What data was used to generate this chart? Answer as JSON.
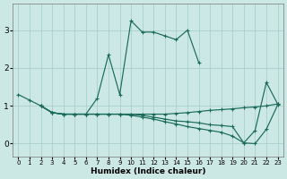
{
  "xlabel": "Humidex (Indice chaleur)",
  "xlim": [
    -0.5,
    23.5
  ],
  "ylim": [
    -0.35,
    3.7
  ],
  "yticks": [
    0,
    1,
    2,
    3
  ],
  "xticks": [
    0,
    1,
    2,
    3,
    4,
    5,
    6,
    7,
    8,
    9,
    10,
    11,
    12,
    13,
    14,
    15,
    16,
    17,
    18,
    19,
    20,
    21,
    22,
    23
  ],
  "background_color": "#cce8e5",
  "grid_color": "#aacfcc",
  "line_color": "#1a6b5a",
  "lines": [
    {
      "x": [
        0,
        1,
        2,
        3,
        4,
        5,
        6,
        7,
        8,
        9,
        10,
        11,
        12,
        13,
        14,
        15,
        16
      ],
      "y": [
        1.3,
        1.15,
        1.0,
        0.82,
        0.78,
        0.78,
        0.78,
        1.2,
        2.35,
        1.3,
        3.25,
        2.95,
        2.95,
        2.85,
        2.75,
        3.0,
        2.15
      ]
    },
    {
      "x": [
        2,
        3,
        4,
        5,
        6,
        7,
        8,
        9,
        10,
        11,
        12,
        13,
        14,
        15,
        16,
        17,
        18,
        19,
        20,
        21,
        22,
        23
      ],
      "y": [
        1.0,
        0.82,
        0.78,
        0.78,
        0.78,
        0.78,
        0.78,
        0.78,
        0.78,
        0.78,
        0.78,
        0.78,
        0.8,
        0.82,
        0.85,
        0.88,
        0.9,
        0.92,
        0.95,
        0.97,
        1.0,
        1.05
      ]
    },
    {
      "x": [
        2,
        3,
        4,
        5,
        6,
        7,
        8,
        9,
        10,
        11,
        12,
        13,
        14,
        15,
        16,
        17,
        18,
        19,
        20,
        21,
        22,
        23
      ],
      "y": [
        1.0,
        0.82,
        0.78,
        0.78,
        0.78,
        0.78,
        0.78,
        0.78,
        0.78,
        0.75,
        0.7,
        0.65,
        0.6,
        0.58,
        0.55,
        0.5,
        0.48,
        0.45,
        0.02,
        0.35,
        1.62,
        1.05
      ]
    },
    {
      "x": [
        2,
        3,
        4,
        5,
        6,
        7,
        8,
        9,
        10,
        11,
        12,
        13,
        14,
        15,
        16,
        17,
        18,
        19,
        20,
        21,
        22,
        23
      ],
      "y": [
        1.0,
        0.82,
        0.78,
        0.78,
        0.78,
        0.78,
        0.78,
        0.78,
        0.75,
        0.7,
        0.65,
        0.58,
        0.52,
        0.45,
        0.4,
        0.35,
        0.3,
        0.2,
        0.02,
        0.0,
        0.38,
        1.02
      ]
    }
  ]
}
